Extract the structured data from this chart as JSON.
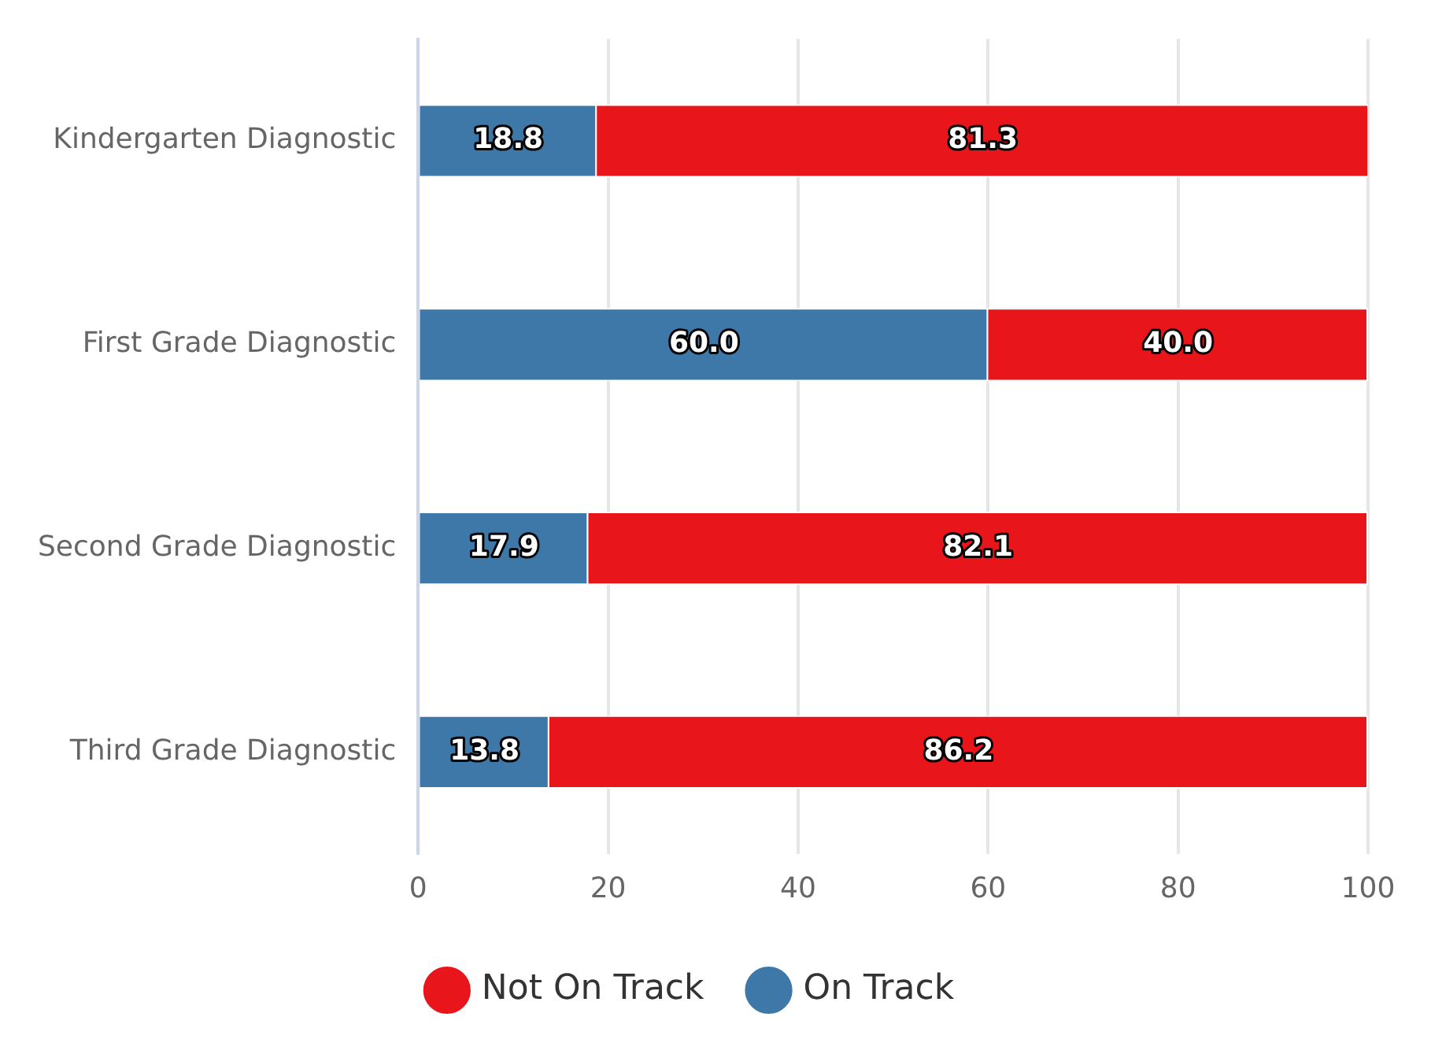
{
  "chart_data": {
    "type": "bar",
    "orientation": "horizontal",
    "stacked": true,
    "categories": [
      "Kindergarten Diagnostic",
      "First Grade Diagnostic",
      "Second Grade Diagnostic",
      "Third Grade Diagnostic"
    ],
    "series": [
      {
        "name": "On Track",
        "color": "#3d78a8",
        "values": [
          18.8,
          60.0,
          17.9,
          13.8
        ],
        "value_labels": [
          "18.8",
          "60.0",
          "17.9",
          "13.8"
        ]
      },
      {
        "name": "Not On Track",
        "color": "#e8151a",
        "values": [
          81.3,
          40.0,
          82.1,
          86.2
        ],
        "value_labels": [
          "81.3",
          "40.0",
          "82.1",
          "86.2"
        ]
      }
    ],
    "xlim": [
      0,
      100
    ],
    "xticks": [
      0,
      20,
      40,
      60,
      80,
      100
    ],
    "grid": "x",
    "legend": "bottom"
  }
}
